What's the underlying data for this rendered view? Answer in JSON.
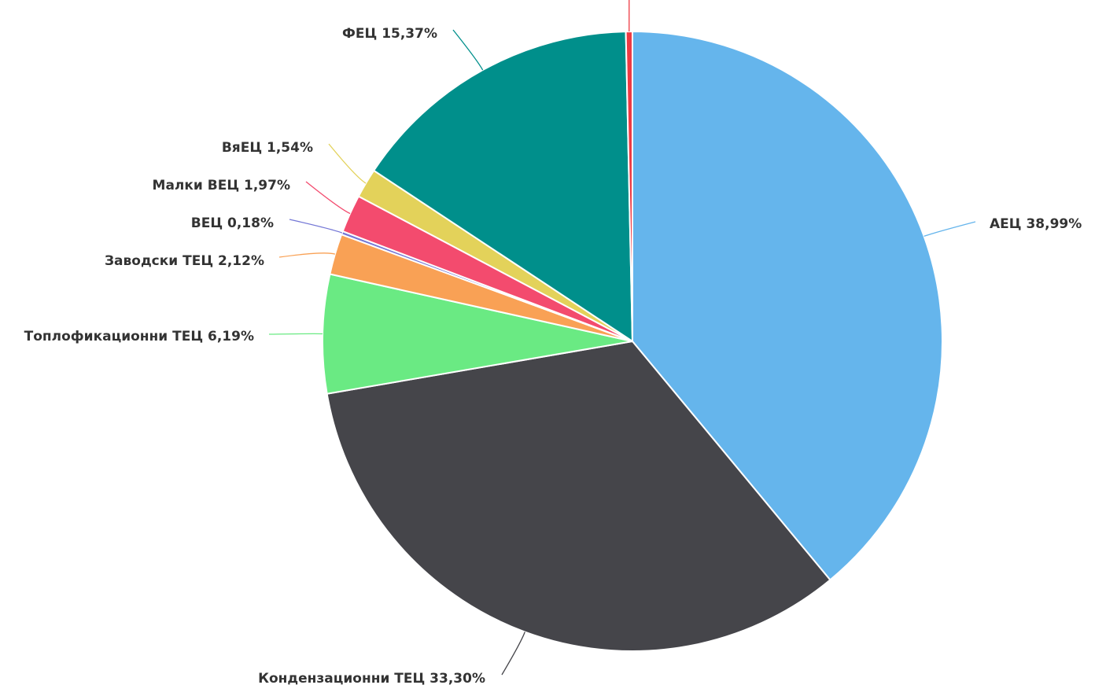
{
  "chart_data": {
    "type": "pie",
    "start_angle_deg": 0,
    "direction": "clockwise",
    "slices": [
      {
        "name": "АЕЦ",
        "value": 38.99,
        "label": "АЕЦ 38,99%",
        "color": "#65b5ec",
        "label_side": "right"
      },
      {
        "name": "Кондензационни ТЕЦ",
        "value": 33.3,
        "label": "Кондензационни ТЕЦ 33,30%",
        "color": "#45454a",
        "label_side": "bottom"
      },
      {
        "name": "Топлофикационни ТЕЦ",
        "value": 6.19,
        "label": "Топлофикационни ТЕЦ 6,19%",
        "color": "#6aea83",
        "label_side": "left"
      },
      {
        "name": "Заводски ТЕЦ",
        "value": 2.12,
        "label": "Заводски ТЕЦ 2,12%",
        "color": "#f9a155",
        "label_side": "left"
      },
      {
        "name": "ВЕЦ",
        "value": 0.18,
        "label": "ВЕЦ 0,18%",
        "color": "#7477d6",
        "label_side": "left"
      },
      {
        "name": "Малки ВЕЦ",
        "value": 1.97,
        "label": "Малки ВЕЦ 1,97%",
        "color": "#f34b6e",
        "label_side": "left"
      },
      {
        "name": "ВяЕЦ",
        "value": 1.54,
        "label": "ВяЕЦ 1,54%",
        "color": "#e3d25a",
        "label_side": "left"
      },
      {
        "name": "ФЕЦ",
        "value": 15.37,
        "label": "ФЕЦ 15,37%",
        "color": "#008f8b",
        "label_side": "top"
      },
      {
        "name": "",
        "value": 0.34,
        "label": "",
        "color": "#ee3a43",
        "label_side": "top"
      }
    ]
  }
}
